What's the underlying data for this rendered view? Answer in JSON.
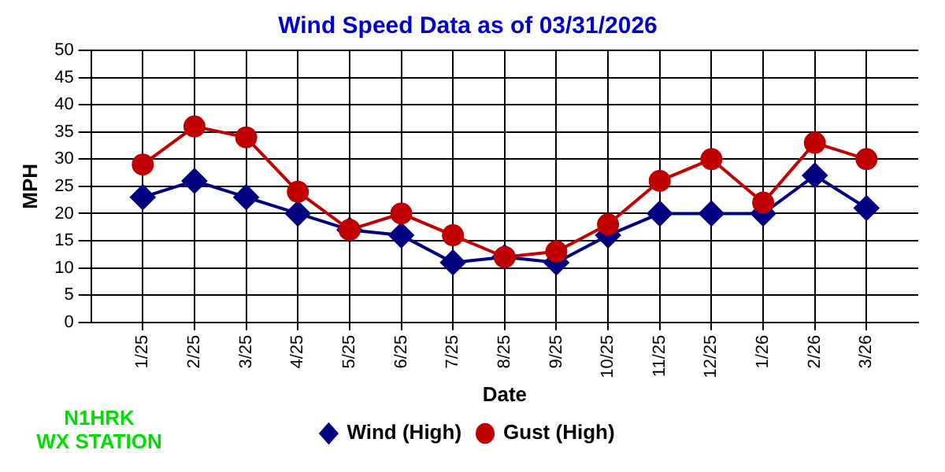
{
  "chart_data": {
    "type": "line",
    "title": "Wind Speed Data as of 03/31/2026",
    "xlabel": "Date",
    "ylabel": "MPH",
    "categories": [
      "1/25",
      "2/25",
      "3/25",
      "4/25",
      "5/25",
      "6/25",
      "7/25",
      "8/25",
      "9/25",
      "10/25",
      "11/25",
      "12/25",
      "1/26",
      "2/26",
      "3/26"
    ],
    "series": [
      {
        "name": "Wind (High)",
        "color": "#000080",
        "marker": "diamond",
        "values": [
          23,
          26,
          23,
          20,
          17,
          16,
          11,
          12,
          11,
          16,
          20,
          20,
          20,
          27,
          21
        ]
      },
      {
        "name": "Gust (High)",
        "color": "#c00000",
        "marker": "circle",
        "values": [
          29,
          36,
          34,
          24,
          17,
          20,
          16,
          12,
          13,
          18,
          26,
          30,
          22,
          33,
          30
        ]
      }
    ],
    "ylim": [
      0,
      50
    ],
    "yticks": [
      0,
      5,
      10,
      15,
      20,
      25,
      30,
      35,
      40,
      45,
      50
    ],
    "grid": true,
    "legend": "bottom",
    "line_style": "solid",
    "annotations": [
      "N1HRK\nWX STATION"
    ]
  }
}
